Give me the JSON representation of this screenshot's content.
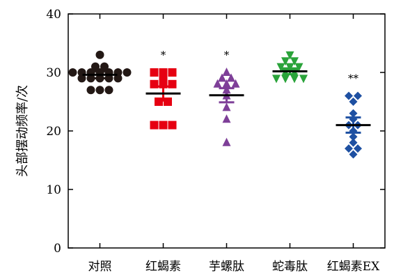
{
  "chart_data": {
    "type": "scatter",
    "ylabel": "头部摆动频率/次",
    "ylim": [
      0,
      40
    ],
    "yticks": [
      0,
      10,
      20,
      30,
      40
    ],
    "grid": false,
    "categories": [
      "对照",
      "红蝎素",
      "芋螺肽",
      "蛇毒肽",
      "红蝎素EX"
    ],
    "series": [
      {
        "category": "对照",
        "marker": "circle",
        "color": "#231815",
        "points": [
          33,
          31,
          31,
          30,
          30,
          30,
          30,
          30,
          30,
          30,
          29,
          29,
          29,
          29,
          29,
          27,
          27,
          27
        ],
        "mean": 29.6,
        "error": 0.6,
        "annotation": ""
      },
      {
        "category": "红蝎素",
        "marker": "square",
        "color": "#e60012",
        "points": [
          30,
          30,
          30,
          29,
          28,
          28,
          28,
          25,
          25,
          21,
          21,
          21
        ],
        "mean": 26.4,
        "error": 1.2,
        "annotation": "*"
      },
      {
        "category": "芋螺肽",
        "marker": "triangle-up",
        "color": "#7e3f98",
        "points": [
          30,
          29,
          29,
          28,
          28,
          28,
          27,
          26,
          24,
          22,
          18
        ],
        "mean": 26.1,
        "error": 1.2,
        "annotation": "*"
      },
      {
        "category": "蛇毒肽",
        "marker": "triangle-down",
        "color": "#2aa33a",
        "points": [
          33,
          32,
          32,
          31,
          31,
          31,
          30,
          30,
          29,
          29,
          29,
          29
        ],
        "mean": 30.2,
        "error": 0.5,
        "annotation": ""
      },
      {
        "category": "红蝎素EX",
        "marker": "diamond",
        "color": "#1e50a2",
        "points": [
          26,
          26,
          25,
          23,
          22,
          21,
          21,
          20,
          19,
          18,
          17,
          17,
          16
        ],
        "mean": 21.0,
        "error": 1.3,
        "annotation": "**"
      }
    ]
  }
}
